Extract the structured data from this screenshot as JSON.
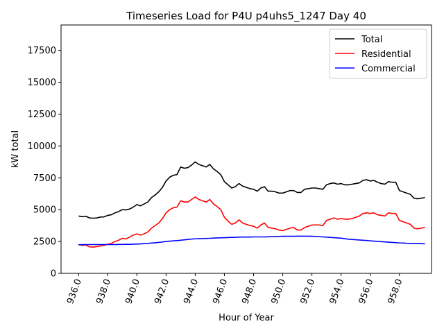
{
  "chart_data": {
    "type": "line",
    "title": "Timeseries Load for P4U p4uhs5_1247  Day 40",
    "xlabel": "Hour of Year",
    "ylabel": "kW total",
    "xlim": [
      934.8,
      960.2
    ],
    "ylim": [
      0,
      19500
    ],
    "xticks": [
      936,
      938,
      940,
      942,
      944,
      946,
      948,
      950,
      952,
      954,
      956,
      958
    ],
    "xtick_labels": [
      "936.0",
      "938.0",
      "940.0",
      "942.0",
      "944.0",
      "946.0",
      "948.0",
      "950.0",
      "952.0",
      "954.0",
      "956.0",
      "958.0"
    ],
    "yticks": [
      0,
      2500,
      5000,
      7500,
      10000,
      12500,
      15000,
      17500
    ],
    "ytick_labels": [
      "0",
      "2500",
      "5000",
      "7500",
      "10000",
      "12500",
      "15000",
      "17500"
    ],
    "grid": false,
    "legend_position": "top-right",
    "series": [
      {
        "name": "Total",
        "color": "#000000",
        "x": [
          936.0,
          936.25,
          936.5,
          936.75,
          937.0,
          937.25,
          937.5,
          937.75,
          938.0,
          938.25,
          938.5,
          938.75,
          939.0,
          939.25,
          939.5,
          939.75,
          940.0,
          940.25,
          940.5,
          940.75,
          941.0,
          941.25,
          941.5,
          941.75,
          942.0,
          942.25,
          942.5,
          942.75,
          943.0,
          943.25,
          943.5,
          943.75,
          944.0,
          944.25,
          944.5,
          944.75,
          945.0,
          945.25,
          945.5,
          945.75,
          946.0,
          946.25,
          946.5,
          946.75,
          947.0,
          947.25,
          947.5,
          947.75,
          948.0,
          948.25,
          948.5,
          948.75,
          949.0,
          949.25,
          949.5,
          949.75,
          950.0,
          950.25,
          950.5,
          950.75,
          951.0,
          951.25,
          951.5,
          951.75,
          952.0,
          952.25,
          952.5,
          952.75,
          953.0,
          953.25,
          953.5,
          953.75,
          954.0,
          954.25,
          954.5,
          954.75,
          955.0,
          955.25,
          955.5,
          955.75,
          956.0,
          956.25,
          956.5,
          956.75,
          957.0,
          957.25,
          957.5,
          957.75,
          958.0,
          958.25,
          958.5,
          958.75,
          959.0,
          959.25,
          959.5,
          959.75
        ],
        "y": [
          4500,
          4450,
          4480,
          4350,
          4330,
          4350,
          4420,
          4430,
          4550,
          4600,
          4750,
          4850,
          5000,
          4980,
          5050,
          5200,
          5400,
          5300,
          5450,
          5600,
          5950,
          6150,
          6400,
          6750,
          7250,
          7550,
          7700,
          7750,
          8350,
          8250,
          8300,
          8500,
          8750,
          8550,
          8450,
          8350,
          8550,
          8200,
          8000,
          7750,
          7200,
          6950,
          6700,
          6800,
          7050,
          6850,
          6750,
          6650,
          6600,
          6450,
          6700,
          6800,
          6450,
          6450,
          6400,
          6300,
          6300,
          6400,
          6500,
          6500,
          6350,
          6350,
          6600,
          6650,
          6700,
          6700,
          6650,
          6600,
          6950,
          7050,
          7100,
          7000,
          7050,
          6950,
          6950,
          7000,
          7050,
          7100,
          7300,
          7350,
          7250,
          7300,
          7150,
          7050,
          7000,
          7200,
          7150,
          7150,
          6500,
          6400,
          6300,
          6200,
          5900,
          5850,
          5900,
          5950
        ]
      },
      {
        "name": "Residential",
        "color": "#ff0000",
        "x": [
          936.0,
          936.25,
          936.5,
          936.75,
          937.0,
          937.25,
          937.5,
          937.75,
          938.0,
          938.25,
          938.5,
          938.75,
          939.0,
          939.25,
          939.5,
          939.75,
          940.0,
          940.25,
          940.5,
          940.75,
          941.0,
          941.25,
          941.5,
          941.75,
          942.0,
          942.25,
          942.5,
          942.75,
          943.0,
          943.25,
          943.5,
          943.75,
          944.0,
          944.25,
          944.5,
          944.75,
          945.0,
          945.25,
          945.5,
          945.75,
          946.0,
          946.25,
          946.5,
          946.75,
          947.0,
          947.25,
          947.5,
          947.75,
          948.0,
          948.25,
          948.5,
          948.75,
          949.0,
          949.25,
          949.5,
          949.75,
          950.0,
          950.25,
          950.5,
          950.75,
          951.0,
          951.25,
          951.5,
          951.75,
          952.0,
          952.25,
          952.5,
          952.75,
          953.0,
          953.25,
          953.5,
          953.75,
          954.0,
          954.25,
          954.5,
          954.75,
          955.0,
          955.25,
          955.5,
          955.75,
          956.0,
          956.25,
          956.5,
          956.75,
          957.0,
          957.25,
          957.5,
          957.75,
          958.0,
          958.25,
          958.5,
          958.75,
          959.0,
          959.25,
          959.5,
          959.75
        ],
        "y": [
          2250,
          2200,
          2220,
          2080,
          2060,
          2100,
          2150,
          2200,
          2280,
          2350,
          2500,
          2600,
          2750,
          2700,
          2850,
          3000,
          3100,
          3000,
          3100,
          3250,
          3550,
          3750,
          3950,
          4300,
          4750,
          5000,
          5150,
          5200,
          5700,
          5600,
          5600,
          5800,
          6000,
          5800,
          5700,
          5600,
          5800,
          5450,
          5250,
          5000,
          4400,
          4100,
          3850,
          3950,
          4200,
          3950,
          3850,
          3750,
          3700,
          3550,
          3800,
          3950,
          3600,
          3550,
          3500,
          3400,
          3350,
          3450,
          3550,
          3600,
          3400,
          3400,
          3600,
          3700,
          3800,
          3800,
          3800,
          3750,
          4150,
          4250,
          4350,
          4250,
          4300,
          4250,
          4250,
          4300,
          4400,
          4500,
          4700,
          4750,
          4700,
          4750,
          4600,
          4550,
          4500,
          4750,
          4700,
          4700,
          4150,
          4050,
          3950,
          3850,
          3550,
          3500,
          3550,
          3600
        ]
      },
      {
        "name": "Commercial",
        "color": "#0000ff",
        "x": [
          936.0,
          936.25,
          936.5,
          936.75,
          937.0,
          937.25,
          937.5,
          937.75,
          938.0,
          938.25,
          938.5,
          938.75,
          939.0,
          939.25,
          939.5,
          939.75,
          940.0,
          940.25,
          940.5,
          940.75,
          941.0,
          941.25,
          941.5,
          941.75,
          942.0,
          942.25,
          942.5,
          942.75,
          943.0,
          943.25,
          943.5,
          943.75,
          944.0,
          944.25,
          944.5,
          944.75,
          945.0,
          945.25,
          945.5,
          945.75,
          946.0,
          946.25,
          946.5,
          946.75,
          947.0,
          947.25,
          947.5,
          947.75,
          948.0,
          948.25,
          948.5,
          948.75,
          949.0,
          949.25,
          949.5,
          949.75,
          950.0,
          950.25,
          950.5,
          950.75,
          951.0,
          951.25,
          951.5,
          951.75,
          952.0,
          952.25,
          952.5,
          952.75,
          953.0,
          953.25,
          953.5,
          953.75,
          954.0,
          954.25,
          954.5,
          954.75,
          955.0,
          955.25,
          955.5,
          955.75,
          956.0,
          956.25,
          956.5,
          956.75,
          957.0,
          957.25,
          957.5,
          957.75,
          958.0,
          958.25,
          958.5,
          958.75,
          959.0,
          959.25,
          959.5,
          959.75
        ],
        "y": [
          2250,
          2250,
          2260,
          2260,
          2260,
          2260,
          2260,
          2260,
          2260,
          2260,
          2260,
          2270,
          2270,
          2280,
          2280,
          2290,
          2300,
          2310,
          2330,
          2350,
          2380,
          2400,
          2430,
          2460,
          2500,
          2530,
          2550,
          2570,
          2600,
          2630,
          2660,
          2690,
          2710,
          2720,
          2730,
          2740,
          2750,
          2770,
          2780,
          2790,
          2800,
          2810,
          2820,
          2830,
          2840,
          2850,
          2850,
          2850,
          2860,
          2860,
          2860,
          2860,
          2870,
          2880,
          2890,
          2900,
          2910,
          2910,
          2910,
          2910,
          2920,
          2920,
          2920,
          2920,
          2910,
          2900,
          2880,
          2860,
          2840,
          2820,
          2800,
          2780,
          2760,
          2720,
          2680,
          2660,
          2640,
          2620,
          2600,
          2580,
          2550,
          2530,
          2510,
          2490,
          2470,
          2450,
          2430,
          2410,
          2390,
          2380,
          2360,
          2350,
          2340,
          2330,
          2330,
          2320
        ]
      }
    ]
  }
}
